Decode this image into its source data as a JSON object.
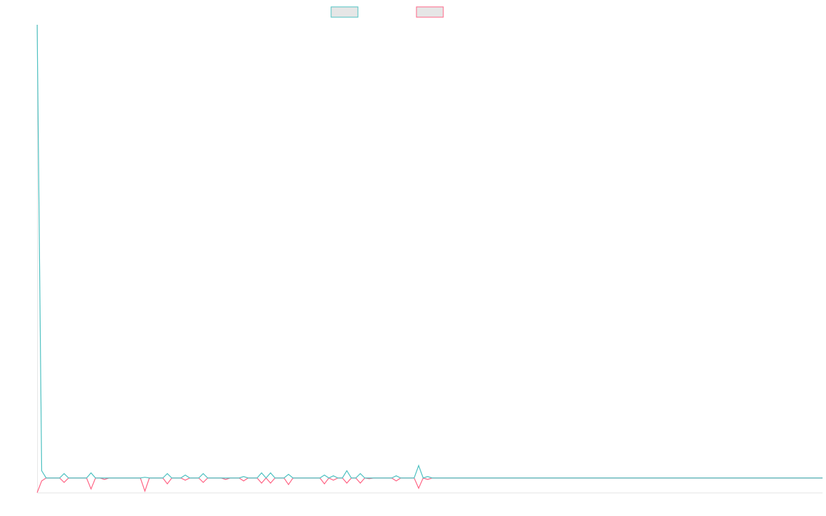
{
  "chart_data": {
    "type": "line",
    "ylim": [
      -1,
      31
    ],
    "series": [
      {
        "color": "#4bc0c0",
        "values": [
          31,
          0.5,
          0,
          0,
          0,
          0,
          0.3,
          0,
          0,
          0,
          0,
          0,
          0.35,
          0,
          0,
          0,
          0,
          0,
          0,
          0,
          0,
          0,
          0,
          0,
          0.05,
          0,
          0,
          0,
          0,
          0.3,
          0,
          0,
          0,
          0.2,
          0,
          0,
          0,
          0.3,
          0,
          0,
          0,
          0,
          0,
          0,
          0,
          0,
          0.1,
          0,
          0,
          0,
          0.35,
          0,
          0.35,
          0,
          0,
          0,
          0.25,
          0,
          0,
          0,
          0,
          0,
          0,
          0,
          0.2,
          0,
          0.15,
          0,
          0,
          0.5,
          0,
          0,
          0.3,
          0,
          0,
          0,
          0,
          0,
          0,
          0,
          0.15,
          0,
          0,
          0,
          0,
          0.85,
          0,
          0.1,
          0,
          0,
          0,
          0,
          0,
          0,
          0,
          0,
          0,
          0,
          0,
          0,
          0,
          0,
          0,
          0,
          0,
          0,
          0,
          0,
          0,
          0,
          0,
          0,
          0,
          0,
          0,
          0,
          0,
          0,
          0,
          0,
          0,
          0,
          0,
          0,
          0,
          0,
          0,
          0,
          0,
          0,
          0,
          0,
          0,
          0,
          0,
          0,
          0,
          0,
          0,
          0,
          0,
          0,
          0,
          0,
          0,
          0,
          0,
          0,
          0,
          0,
          0,
          0,
          0,
          0,
          0,
          0,
          0,
          0,
          0,
          0,
          0,
          0,
          0,
          0,
          0,
          0,
          0,
          0,
          0,
          0,
          0,
          0,
          0,
          0,
          0,
          0
        ]
      },
      {
        "color": "#ff6384",
        "values": [
          -1,
          -0.2,
          0,
          0,
          0,
          0,
          -0.3,
          0,
          0,
          0,
          0,
          0,
          -0.75,
          0,
          0,
          -0.1,
          0,
          0,
          0,
          0,
          0,
          0,
          0,
          0,
          -0.9,
          0,
          0,
          0,
          0,
          -0.4,
          0,
          0,
          0,
          -0.15,
          0,
          0,
          0,
          -0.3,
          0,
          0,
          0,
          0,
          -0.1,
          0,
          0,
          0,
          -0.2,
          0,
          0,
          0,
          -0.35,
          0,
          -0.35,
          0,
          0,
          0,
          -0.45,
          0,
          0,
          0,
          0,
          0,
          0,
          0,
          -0.4,
          0,
          -0.15,
          0,
          0,
          -0.35,
          0,
          0,
          -0.35,
          0,
          -0.05,
          0,
          0,
          0,
          0,
          0,
          -0.2,
          0,
          0,
          0,
          0,
          -0.7,
          0,
          -0.1,
          0,
          0,
          0,
          0,
          0,
          0,
          0,
          0,
          0,
          0,
          0,
          0,
          0,
          0,
          0,
          0,
          0,
          0,
          0,
          0,
          0,
          0,
          0,
          0,
          0,
          0,
          0,
          0,
          0,
          0,
          0,
          0,
          0,
          0,
          0,
          0,
          0,
          0,
          0,
          0,
          0,
          0,
          0,
          0,
          0,
          0,
          0,
          0,
          0,
          0,
          0,
          0,
          0,
          0,
          0,
          0,
          0,
          0,
          0,
          0,
          0,
          0,
          0,
          0,
          0,
          0,
          0,
          0,
          0,
          0,
          0,
          0,
          0,
          0,
          0,
          0,
          0,
          0,
          0,
          0,
          0,
          0,
          0,
          0,
          0,
          0,
          0,
          0
        ]
      }
    ]
  }
}
